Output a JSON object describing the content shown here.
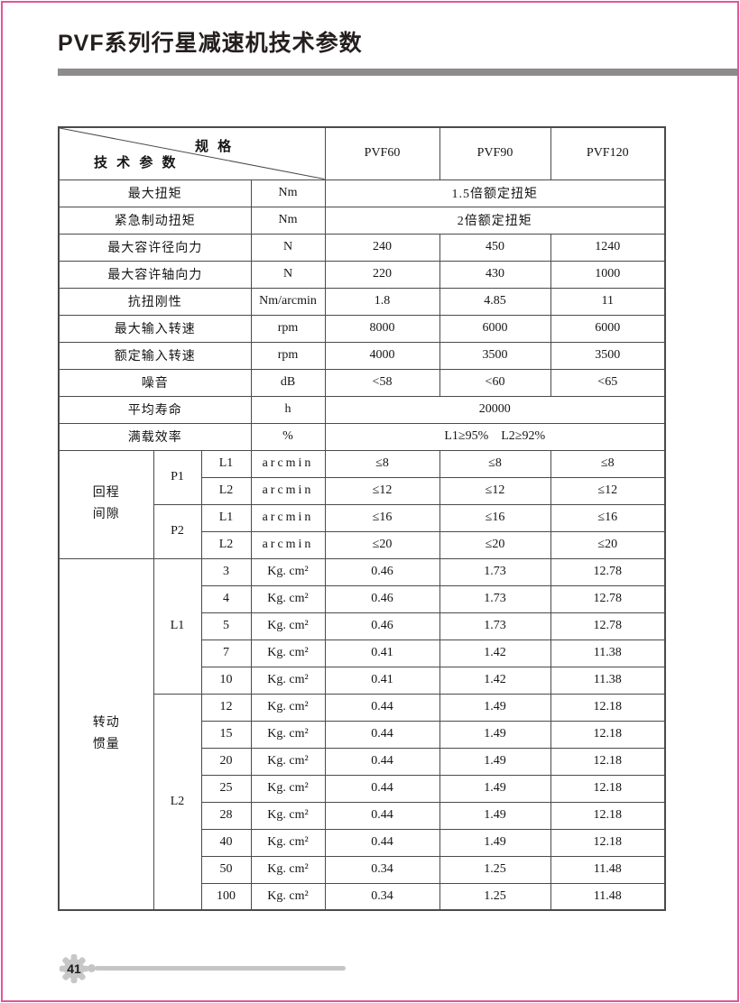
{
  "page": {
    "title": "PVF系列行星减速机技术参数",
    "page_number": "41"
  },
  "colors": {
    "page_border": "#e2569b",
    "shaded_cell": "#d9d5d1",
    "grid_line": "#4a4a4a",
    "title_bar": "#8d8b8b",
    "footer_gray": "#c5c5c5"
  },
  "table": {
    "corner": {
      "spec_label": "规 格",
      "param_label": "技 术 参 数"
    },
    "model_columns": [
      "PVF60",
      "PVF90",
      "PVF120"
    ],
    "body_rows": [
      {
        "shaded": true,
        "cells": [
          {
            "text": "最大扭矩",
            "colspan": 3,
            "class": "label"
          },
          {
            "text": "Nm",
            "class": "unit"
          },
          {
            "text": "1.5倍额定扭矩",
            "colspan": 3,
            "class": "label"
          }
        ]
      },
      {
        "shaded": false,
        "cells": [
          {
            "text": "紧急制动扭矩",
            "colspan": 3,
            "class": "label"
          },
          {
            "text": "Nm",
            "class": "unit"
          },
          {
            "text": "2倍额定扭矩",
            "colspan": 3,
            "class": "label"
          }
        ]
      },
      {
        "shaded": true,
        "cells": [
          {
            "text": "最大容许径向力",
            "colspan": 3,
            "class": "label"
          },
          {
            "text": "N",
            "class": "unit"
          },
          {
            "text": "240",
            "class": "value"
          },
          {
            "text": "450",
            "class": "value"
          },
          {
            "text": "1240",
            "class": "value"
          }
        ]
      },
      {
        "shaded": false,
        "cells": [
          {
            "text": "最大容许轴向力",
            "colspan": 3,
            "class": "label"
          },
          {
            "text": "N",
            "class": "unit"
          },
          {
            "text": "220",
            "class": "value"
          },
          {
            "text": "430",
            "class": "value"
          },
          {
            "text": "1000",
            "class": "value"
          }
        ]
      },
      {
        "shaded": true,
        "cells": [
          {
            "text": "抗扭刚性",
            "colspan": 3,
            "class": "label"
          },
          {
            "text": "Nm/arcmin",
            "class": "unit"
          },
          {
            "text": "1.8",
            "class": "value"
          },
          {
            "text": "4.85",
            "class": "value"
          },
          {
            "text": "11",
            "class": "value"
          }
        ]
      },
      {
        "shaded": false,
        "cells": [
          {
            "text": "最大输入转速",
            "colspan": 3,
            "class": "label"
          },
          {
            "text": "rpm",
            "class": "unit"
          },
          {
            "text": "8000",
            "class": "value"
          },
          {
            "text": "6000",
            "class": "value"
          },
          {
            "text": "6000",
            "class": "value"
          }
        ]
      },
      {
        "shaded": true,
        "cells": [
          {
            "text": "额定输入转速",
            "colspan": 3,
            "class": "label"
          },
          {
            "text": "rpm",
            "class": "unit"
          },
          {
            "text": "4000",
            "class": "value"
          },
          {
            "text": "3500",
            "class": "value"
          },
          {
            "text": "3500",
            "class": "value"
          }
        ]
      },
      {
        "shaded": false,
        "cells": [
          {
            "text": "噪音",
            "colspan": 3,
            "class": "label"
          },
          {
            "text": "dB",
            "class": "unit"
          },
          {
            "text": "<58",
            "class": "value"
          },
          {
            "text": "<60",
            "class": "value"
          },
          {
            "text": "<65",
            "class": "value"
          }
        ]
      },
      {
        "shaded": true,
        "cells": [
          {
            "text": "平均寿命",
            "colspan": 3,
            "class": "label"
          },
          {
            "text": "h",
            "class": "unit"
          },
          {
            "text": "20000",
            "colspan": 3,
            "class": "value"
          }
        ]
      },
      {
        "shaded": false,
        "cells": [
          {
            "text": "满载效率",
            "colspan": 3,
            "class": "label"
          },
          {
            "text": "%",
            "class": "unit"
          },
          {
            "text": "L1≥95% L2≥92%",
            "colspan": 3,
            "class": "value"
          }
        ]
      },
      {
        "shaded": true,
        "cells": [
          {
            "text": "回程\n间隙",
            "rowspan": 4,
            "class": "side-label",
            "plain": true
          },
          {
            "text": "P1",
            "rowspan": 2,
            "class": "group",
            "plain": true
          },
          {
            "text": "L1",
            "class": "group"
          },
          {
            "text": "arcmin",
            "class": "unit-wide"
          },
          {
            "text": "≤8",
            "class": "value"
          },
          {
            "text": "≤8",
            "class": "value"
          },
          {
            "text": "≤8",
            "class": "value"
          }
        ]
      },
      {
        "shaded": false,
        "cells": [
          {
            "text": "L2",
            "class": "group"
          },
          {
            "text": "arcmin",
            "class": "unit-wide"
          },
          {
            "text": "≤12",
            "class": "value"
          },
          {
            "text": "≤12",
            "class": "value"
          },
          {
            "text": "≤12",
            "class": "value"
          }
        ]
      },
      {
        "shaded": true,
        "cells": [
          {
            "text": "P2",
            "rowspan": 2,
            "class": "group",
            "plain": true
          },
          {
            "text": "L1",
            "class": "group"
          },
          {
            "text": "arcmin",
            "class": "unit-wide"
          },
          {
            "text": "≤16",
            "class": "value"
          },
          {
            "text": "≤16",
            "class": "value"
          },
          {
            "text": "≤16",
            "class": "value"
          }
        ]
      },
      {
        "shaded": false,
        "cells": [
          {
            "text": "L2",
            "class": "group"
          },
          {
            "text": "arcmin",
            "class": "unit-wide"
          },
          {
            "text": "≤20",
            "class": "value"
          },
          {
            "text": "≤20",
            "class": "value"
          },
          {
            "text": "≤20",
            "class": "value"
          }
        ]
      },
      {
        "shaded": true,
        "cells": [
          {
            "text": "转动\n惯量",
            "rowspan": 13,
            "class": "side-label",
            "plain": true
          },
          {
            "text": "L1",
            "rowspan": 5,
            "class": "group",
            "plain": true
          },
          {
            "text": "3",
            "class": "ratio"
          },
          {
            "text": "Kg. cm²",
            "class": "unit-kg"
          },
          {
            "text": "0.46",
            "class": "value"
          },
          {
            "text": "1.73",
            "class": "value"
          },
          {
            "text": "12.78",
            "class": "value"
          }
        ]
      },
      {
        "shaded": false,
        "cells": [
          {
            "text": "4",
            "class": "ratio"
          },
          {
            "text": "Kg. cm²",
            "class": "unit-kg"
          },
          {
            "text": "0.46",
            "class": "value"
          },
          {
            "text": "1.73",
            "class": "value"
          },
          {
            "text": "12.78",
            "class": "value"
          }
        ]
      },
      {
        "shaded": true,
        "cells": [
          {
            "text": "5",
            "class": "ratio"
          },
          {
            "text": "Kg. cm²",
            "class": "unit-kg"
          },
          {
            "text": "0.46",
            "class": "value"
          },
          {
            "text": "1.73",
            "class": "value"
          },
          {
            "text": "12.78",
            "class": "value"
          }
        ]
      },
      {
        "shaded": false,
        "cells": [
          {
            "text": "7",
            "class": "ratio"
          },
          {
            "text": "Kg. cm²",
            "class": "unit-kg"
          },
          {
            "text": "0.41",
            "class": "value"
          },
          {
            "text": "1.42",
            "class": "value"
          },
          {
            "text": "11.38",
            "class": "value"
          }
        ]
      },
      {
        "shaded": true,
        "cells": [
          {
            "text": "10",
            "class": "ratio"
          },
          {
            "text": "Kg. cm²",
            "class": "unit-kg"
          },
          {
            "text": "0.41",
            "class": "value"
          },
          {
            "text": "1.42",
            "class": "value"
          },
          {
            "text": "11.38",
            "class": "value"
          }
        ]
      },
      {
        "shaded": false,
        "cells": [
          {
            "text": "L2",
            "rowspan": 8,
            "class": "group",
            "plain": true
          },
          {
            "text": "12",
            "class": "ratio"
          },
          {
            "text": "Kg. cm²",
            "class": "unit-kg"
          },
          {
            "text": "0.44",
            "class": "value"
          },
          {
            "text": "1.49",
            "class": "value"
          },
          {
            "text": "12.18",
            "class": "value"
          }
        ]
      },
      {
        "shaded": true,
        "cells": [
          {
            "text": "15",
            "class": "ratio"
          },
          {
            "text": "Kg. cm²",
            "class": "unit-kg"
          },
          {
            "text": "0.44",
            "class": "value"
          },
          {
            "text": "1.49",
            "class": "value"
          },
          {
            "text": "12.18",
            "class": "value"
          }
        ]
      },
      {
        "shaded": false,
        "cells": [
          {
            "text": "20",
            "class": "ratio"
          },
          {
            "text": "Kg. cm²",
            "class": "unit-kg"
          },
          {
            "text": "0.44",
            "class": "value"
          },
          {
            "text": "1.49",
            "class": "value"
          },
          {
            "text": "12.18",
            "class": "value"
          }
        ]
      },
      {
        "shaded": true,
        "cells": [
          {
            "text": "25",
            "class": "ratio"
          },
          {
            "text": "Kg. cm²",
            "class": "unit-kg"
          },
          {
            "text": "0.44",
            "class": "value"
          },
          {
            "text": "1.49",
            "class": "value"
          },
          {
            "text": "12.18",
            "class": "value"
          }
        ]
      },
      {
        "shaded": false,
        "cells": [
          {
            "text": "28",
            "class": "ratio"
          },
          {
            "text": "Kg. cm²",
            "class": "unit-kg"
          },
          {
            "text": "0.44",
            "class": "value"
          },
          {
            "text": "1.49",
            "class": "value"
          },
          {
            "text": "12.18",
            "class": "value"
          }
        ]
      },
      {
        "shaded": true,
        "cells": [
          {
            "text": "40",
            "class": "ratio"
          },
          {
            "text": "Kg. cm²",
            "class": "unit-kg"
          },
          {
            "text": "0.44",
            "class": "value"
          },
          {
            "text": "1.49",
            "class": "value"
          },
          {
            "text": "12.18",
            "class": "value"
          }
        ]
      },
      {
        "shaded": false,
        "cells": [
          {
            "text": "50",
            "class": "ratio"
          },
          {
            "text": "Kg. cm²",
            "class": "unit-kg"
          },
          {
            "text": "0.34",
            "class": "value"
          },
          {
            "text": "1.25",
            "class": "value"
          },
          {
            "text": "11.48",
            "class": "value"
          }
        ]
      },
      {
        "shaded": true,
        "cells": [
          {
            "text": "100",
            "class": "ratio"
          },
          {
            "text": "Kg. cm²",
            "class": "unit-kg"
          },
          {
            "text": "0.34",
            "class": "value"
          },
          {
            "text": "1.25",
            "class": "value"
          },
          {
            "text": "11.48",
            "class": "value"
          }
        ]
      }
    ]
  }
}
